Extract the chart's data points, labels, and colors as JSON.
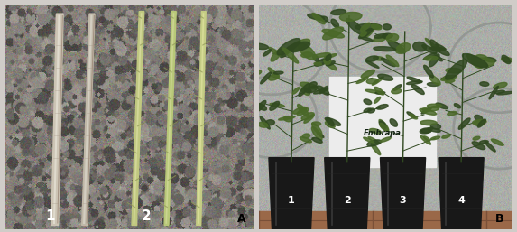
{
  "figsize": [
    5.73,
    2.57
  ],
  "dpi": 100,
  "left_panel": {
    "bg_color": "#8c8880",
    "stone_colors": [
      "#787068",
      "#6a6258",
      "#8a8278",
      "#908880",
      "#7c7468",
      "#a09890"
    ],
    "woody_color": "#c8c0b0",
    "woody_highlight": "#e8e0d0",
    "woody_shadow": "#a09080",
    "herb_color": "#c8d0a0",
    "herb_highlight": "#dce0b8",
    "herb_shadow": "#a0a870",
    "label1": "1",
    "label2": "2",
    "label_color": "#ffffff",
    "label_fontsize": 11,
    "A_label": "A",
    "A_color": "#000000",
    "A_fontsize": 9
  },
  "right_panel": {
    "bg_wall_color": "#b0b4b0",
    "bg_wall_color2": "#a8acaa",
    "circle_color": "#989c98",
    "floor_color": "#907860",
    "brick_color": "#b06040",
    "pot_color": "#181818",
    "pot_highlight": "#303030",
    "bag_color": "#e8eae8",
    "bag_text": "Embrapa",
    "bag_text_color": "#102010",
    "green_dark": "#304820",
    "green_mid": "#4a6828",
    "green_light": "#688840",
    "labels": [
      "1",
      "2",
      "3",
      "4"
    ],
    "label_color": "#ffffff",
    "label_fontsize": 8,
    "B_label": "B",
    "B_color": "#000000",
    "B_fontsize": 9
  }
}
